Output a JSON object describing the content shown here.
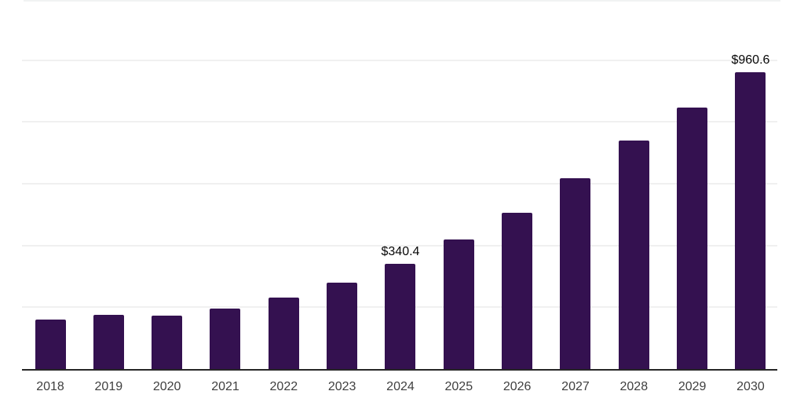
{
  "chart_data": {
    "type": "bar",
    "title": "",
    "xlabel": "",
    "ylabel": "",
    "categories": [
      "2018",
      "2019",
      "2020",
      "2021",
      "2022",
      "2023",
      "2024",
      "2025",
      "2026",
      "2027",
      "2028",
      "2029",
      "2030"
    ],
    "values": [
      160.8,
      176.1,
      171.8,
      196.4,
      232.1,
      278.6,
      340.4,
      419.1,
      505.9,
      617.9,
      738.4,
      846.9,
      960.6
    ],
    "data_labels": [
      {
        "category": "2024",
        "text": "$340.4"
      },
      {
        "category": "2030",
        "text": "$960.6"
      }
    ],
    "ylim": [
      0,
      1000
    ],
    "gridline_values": [
      200,
      400,
      600,
      800,
      1000
    ],
    "grid": "horizontal",
    "legend": "none",
    "y_axis_labels_visible": false,
    "colors": {
      "bar": "#341150",
      "gridline": "#f0f0f0",
      "axis": "#262626",
      "tick_label": "#3f3f3f",
      "data_label": "#070707",
      "top_border": "#f1f3f3",
      "background": "#ffffff"
    }
  }
}
